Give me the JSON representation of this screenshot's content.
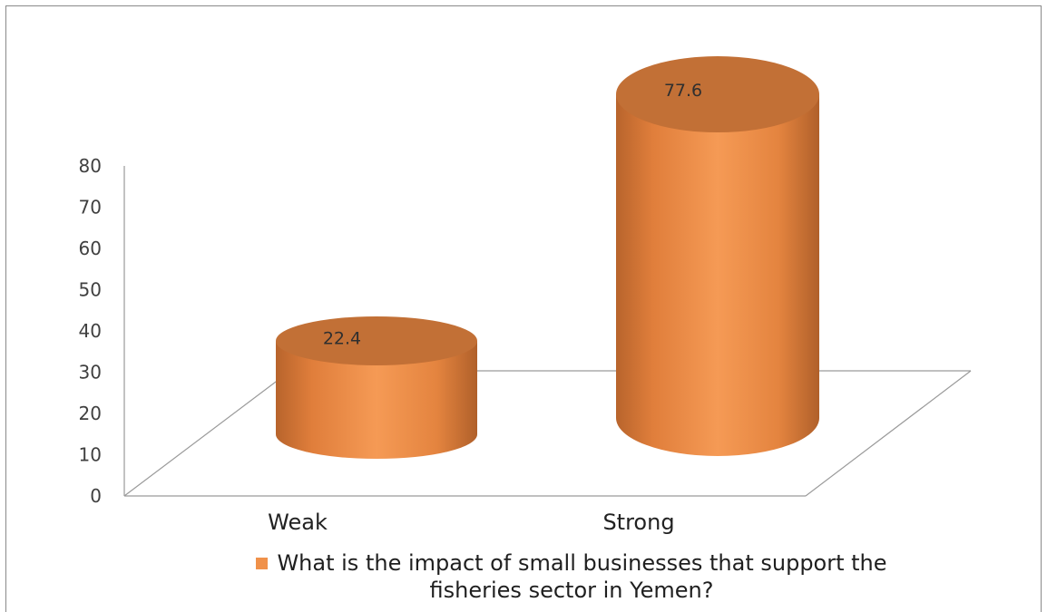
{
  "chart_data": {
    "type": "bar",
    "categories": [
      "Weak",
      "Strong"
    ],
    "series": [
      {
        "name": "What is the impact of small businesses that support the fisheries sector in Yemen?",
        "values": [
          22.4,
          77.6
        ]
      }
    ],
    "y_ticks": [
      "0",
      "10",
      "20",
      "30",
      "40",
      "50",
      "60",
      "70",
      "80"
    ],
    "ylim": [
      0,
      80
    ],
    "title": "",
    "xlabel": "",
    "ylabel": "",
    "legend_position": "bottom",
    "bar_style": "3d-cylinder",
    "colors": {
      "bar_body": "#f0914a",
      "bar_dark": "#b8642c",
      "bar_top": "#c27036",
      "floor_line": "#9a9a9a"
    }
  }
}
